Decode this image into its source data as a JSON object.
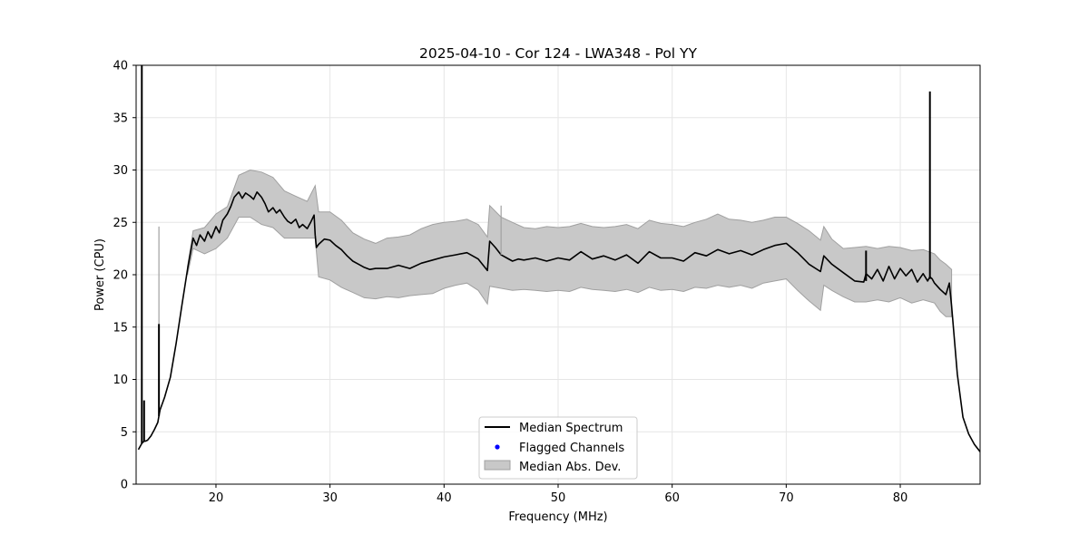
{
  "chart_data": {
    "type": "line",
    "title": "2025-04-10 - Cor 124 - LWA348 - Pol YY",
    "xlabel": "Frequency (MHz)",
    "ylabel": "Power (CPU)",
    "xlim": [
      13,
      87
    ],
    "ylim": [
      0,
      40
    ],
    "xticks": [
      20,
      30,
      40,
      50,
      60,
      70,
      80
    ],
    "yticks": [
      0,
      5,
      10,
      15,
      20,
      25,
      30,
      35,
      40
    ],
    "grid": true,
    "legend_position": "bottom-center",
    "legend": [
      {
        "label": "Median Spectrum",
        "kind": "line"
      },
      {
        "label": "Flagged Channels",
        "kind": "marker"
      },
      {
        "label": "Median Abs. Dev.",
        "kind": "band"
      }
    ],
    "colors": {
      "line": "#000000",
      "band_fill": "#c8c8c8",
      "band_edge": "#a0a0a0",
      "flagged": "#0000ff",
      "grid": "#e6e6e6"
    },
    "series": [
      {
        "name": "Median Spectrum",
        "x": [
          13.2,
          13.5,
          13.6,
          13.7,
          13.8,
          14.0,
          14.3,
          14.6,
          14.9,
          15.0,
          15.1,
          15.5,
          16.0,
          16.5,
          17.0,
          17.5,
          18.0,
          18.3,
          18.6,
          19.0,
          19.3,
          19.6,
          20.0,
          20.3,
          20.6,
          21.0,
          21.3,
          21.6,
          22.0,
          22.3,
          22.6,
          23.0,
          23.3,
          23.6,
          24.0,
          24.3,
          24.6,
          25.0,
          25.3,
          25.6,
          26.0,
          26.3,
          26.6,
          27.0,
          27.3,
          27.6,
          28.0,
          28.3,
          28.6,
          28.7,
          28.8,
          29.0,
          29.5,
          30.0,
          30.5,
          31.0,
          31.5,
          32.0,
          32.5,
          33.0,
          33.5,
          34.0,
          35.0,
          36.0,
          37.0,
          38.0,
          39.0,
          40.0,
          41.0,
          42.0,
          43.0,
          43.8,
          44.0,
          44.5,
          45.0,
          45.5,
          46.0,
          46.5,
          47.0,
          48.0,
          49.0,
          50.0,
          51.0,
          52.0,
          53.0,
          54.0,
          55.0,
          56.0,
          57.0,
          58.0,
          59.0,
          60.0,
          61.0,
          62.0,
          63.0,
          64.0,
          65.0,
          66.0,
          67.0,
          68.0,
          69.0,
          70.0,
          71.0,
          72.0,
          73.0,
          73.3,
          74.0,
          75.0,
          76.0,
          76.8,
          77.0,
          77.5,
          78.0,
          78.5,
          79.0,
          79.5,
          80.0,
          80.5,
          81.0,
          81.5,
          82.0,
          82.4,
          82.6,
          82.8,
          83.0,
          83.5,
          84.0,
          84.3,
          84.5,
          85.0,
          85.5,
          86.0,
          86.5,
          87.0
        ],
        "values": [
          3.3,
          3.9,
          4.0,
          4.1,
          4.1,
          4.2,
          4.6,
          5.2,
          5.9,
          6.5,
          7.1,
          8.3,
          10.2,
          13.4,
          17.0,
          20.5,
          23.5,
          22.8,
          23.8,
          23.2,
          24.1,
          23.5,
          24.6,
          24.0,
          25.2,
          25.8,
          26.5,
          27.4,
          27.9,
          27.3,
          27.8,
          27.5,
          27.2,
          27.9,
          27.4,
          26.8,
          26.0,
          26.4,
          25.9,
          26.2,
          25.5,
          25.1,
          24.9,
          25.3,
          24.5,
          24.8,
          24.4,
          25.0,
          25.7,
          23.8,
          22.6,
          22.9,
          23.4,
          23.3,
          22.8,
          22.4,
          21.8,
          21.3,
          21.0,
          20.7,
          20.5,
          20.6,
          20.6,
          20.9,
          20.6,
          21.1,
          21.4,
          21.7,
          21.9,
          22.1,
          21.5,
          20.4,
          23.2,
          22.6,
          21.9,
          21.6,
          21.3,
          21.5,
          21.4,
          21.6,
          21.3,
          21.6,
          21.4,
          22.2,
          21.5,
          21.8,
          21.4,
          21.9,
          21.1,
          22.2,
          21.6,
          21.6,
          21.3,
          22.1,
          21.8,
          22.4,
          22.0,
          22.3,
          21.9,
          22.4,
          22.8,
          23.0,
          22.1,
          21.0,
          20.3,
          21.8,
          21.0,
          20.2,
          19.4,
          19.3,
          20.1,
          19.6,
          20.5,
          19.4,
          20.8,
          19.6,
          20.6,
          19.9,
          20.5,
          19.3,
          20.1,
          19.4,
          19.8,
          19.6,
          19.2,
          18.6,
          18.1,
          19.2,
          17.0,
          10.5,
          6.4,
          4.8,
          3.8,
          3.1
        ]
      },
      {
        "name": "Median Abs. Dev.",
        "x": [
          17.5,
          18.0,
          19.0,
          20.0,
          21.0,
          22.0,
          23.0,
          24.0,
          25.0,
          26.0,
          27.0,
          28.0,
          28.7,
          29.0,
          30.0,
          31.0,
          32.0,
          33.0,
          34.0,
          35.0,
          36.0,
          37.0,
          38.0,
          39.0,
          40.0,
          41.0,
          42.0,
          43.0,
          43.8,
          44.0,
          45.0,
          46.0,
          47.0,
          48.0,
          49.0,
          50.0,
          51.0,
          52.0,
          53.0,
          54.0,
          55.0,
          56.0,
          57.0,
          58.0,
          59.0,
          60.0,
          61.0,
          62.0,
          63.0,
          64.0,
          65.0,
          66.0,
          67.0,
          68.0,
          69.0,
          70.0,
          71.0,
          72.0,
          73.0,
          73.3,
          74.0,
          75.0,
          76.0,
          77.0,
          78.0,
          79.0,
          80.0,
          81.0,
          82.0,
          83.0,
          83.5,
          84.0,
          84.5
        ],
        "lower": [
          20.0,
          22.5,
          22.0,
          22.5,
          23.5,
          25.5,
          25.5,
          24.8,
          24.5,
          23.5,
          23.5,
          23.5,
          23.5,
          19.8,
          19.5,
          18.8,
          18.3,
          17.8,
          17.7,
          17.9,
          17.8,
          18.0,
          18.1,
          18.2,
          18.7,
          19.0,
          19.2,
          18.5,
          17.2,
          18.9,
          18.7,
          18.5,
          18.6,
          18.5,
          18.4,
          18.5,
          18.4,
          18.8,
          18.6,
          18.5,
          18.4,
          18.6,
          18.3,
          18.8,
          18.5,
          18.6,
          18.4,
          18.8,
          18.7,
          19.0,
          18.8,
          19.0,
          18.7,
          19.2,
          19.4,
          19.6,
          18.5,
          17.5,
          16.6,
          19.0,
          18.5,
          17.9,
          17.4,
          17.4,
          17.6,
          17.4,
          17.8,
          17.3,
          17.6,
          17.3,
          16.5,
          16.0,
          16.0
        ],
        "upper": [
          20.8,
          24.2,
          24.5,
          25.8,
          26.5,
          29.5,
          30.0,
          29.8,
          29.3,
          28.0,
          27.5,
          27.0,
          28.5,
          26.0,
          26.0,
          25.2,
          24.0,
          23.4,
          23.0,
          23.5,
          23.6,
          23.8,
          24.4,
          24.8,
          25.0,
          25.1,
          25.3,
          24.8,
          23.6,
          26.6,
          25.5,
          25.0,
          24.5,
          24.4,
          24.6,
          24.5,
          24.6,
          24.9,
          24.6,
          24.5,
          24.6,
          24.8,
          24.4,
          25.2,
          24.9,
          24.8,
          24.6,
          25.0,
          25.3,
          25.8,
          25.3,
          25.2,
          25.0,
          25.2,
          25.5,
          25.5,
          24.9,
          24.2,
          23.3,
          24.6,
          23.4,
          22.5,
          22.6,
          22.7,
          22.5,
          22.7,
          22.6,
          22.3,
          22.4,
          22.0,
          21.4,
          21.0,
          20.5
        ]
      }
    ],
    "spikes": [
      {
        "x": 13.5,
        "base": 3.9,
        "peak": 40.0
      },
      {
        "x": 13.7,
        "base": 4.1,
        "peak": 8.0
      },
      {
        "x": 15.0,
        "base": 6.5,
        "peak": 15.3
      },
      {
        "x": 15.0,
        "base": 15.3,
        "peak": 24.6
      },
      {
        "x": 45.0,
        "base": 21.9,
        "peak": 26.6
      },
      {
        "x": 77.0,
        "base": 19.4,
        "peak": 22.3
      },
      {
        "x": 82.6,
        "base": 19.6,
        "peak": 37.5
      }
    ]
  }
}
